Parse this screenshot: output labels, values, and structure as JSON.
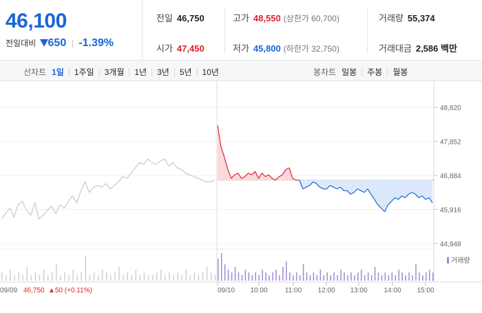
{
  "quote": {
    "price": "46,100",
    "change_label": "전일대비",
    "change": "650",
    "change_pct": "-1.39%"
  },
  "stats": {
    "prev_close": {
      "label": "전일",
      "value": "46,750"
    },
    "open": {
      "label": "시가",
      "value": "47,450"
    },
    "high": {
      "label": "고가",
      "value": "48,550",
      "sub": "(상한가 60,700)"
    },
    "low": {
      "label": "저가",
      "value": "45,800",
      "sub": "(하한가 32,750)"
    },
    "volume": {
      "label": "거래량",
      "value": "55,374"
    },
    "amount": {
      "label": "거래대금",
      "value": "2,586 백만"
    }
  },
  "toolbar": {
    "line_label": "선차트",
    "ranges": [
      "1일",
      "1주일",
      "3개월",
      "1년",
      "3년",
      "5년",
      "10년"
    ],
    "active_range": "1일",
    "candle_label": "봉차트",
    "candles": [
      "일봉",
      "주봉",
      "월봉"
    ]
  },
  "colors": {
    "up": "#e0202b",
    "down": "#1a64d6",
    "prev_day_line": "#c8c8c8",
    "volume_today": "#a08ad0",
    "volume_prev": "#cfcfcf",
    "fill_up": "#f9d9dc",
    "fill_down": "#dbe8fa"
  },
  "chart_data": {
    "type": "line",
    "y_ticks": [
      "48,820",
      "47,852",
      "46,884",
      "45,916",
      "44,948"
    ],
    "ylim": [
      44948,
      48820
    ],
    "baseline": 46750,
    "x_ticks": [
      "09/10",
      "10:00",
      "11:00",
      "12:00",
      "13:00",
      "14:00",
      "15:00"
    ],
    "prev_day": {
      "date": "09/09",
      "close_text": "46,750",
      "change_text": "▲50 (+0.11%)",
      "values": [
        45650,
        45800,
        45950,
        45700,
        46050,
        46150,
        45900,
        45750,
        46100,
        45650,
        45750,
        45900,
        46000,
        45800,
        46050,
        45950,
        46150,
        46300,
        46100,
        46450,
        46700,
        46400,
        46550,
        46600,
        46550,
        46650,
        46500,
        46600,
        46700,
        46850,
        46800,
        46950,
        47100,
        47250,
        47200,
        47350,
        47250,
        47200,
        47300,
        47350,
        47150,
        47250,
        47100,
        47050,
        46950,
        46900,
        46850,
        46800,
        46750,
        46700,
        46700,
        46750
      ]
    },
    "today": {
      "values": [
        48300,
        47700,
        47400,
        47050,
        46800,
        46900,
        46950,
        46800,
        46850,
        46950,
        46900,
        47000,
        46800,
        46950,
        46850,
        46900,
        46800,
        46750,
        46850,
        46900,
        47050,
        47100,
        46800,
        46750,
        46750,
        46500,
        46550,
        46600,
        46700,
        46650,
        46550,
        46500,
        46500,
        46600,
        46550,
        46500,
        46550,
        46450,
        46450,
        46350,
        46400,
        46500,
        46450,
        46400,
        46500,
        46350,
        46200,
        46050,
        45950,
        45850,
        46050,
        46150,
        46250,
        46200,
        46300,
        46250,
        46350,
        46400,
        46350,
        46250,
        46300,
        46200,
        46250,
        46100
      ]
    },
    "volume_label": "거래량",
    "volume_prev": [
      3,
      2,
      4,
      2,
      3,
      2,
      5,
      2,
      3,
      2,
      4,
      2,
      3,
      6,
      2,
      3,
      2,
      4,
      2,
      3,
      9,
      2,
      3,
      2,
      4,
      3,
      2,
      3,
      5,
      2,
      3,
      2,
      4,
      2,
      3,
      2,
      2,
      3,
      4,
      2,
      3,
      2,
      3,
      2,
      4,
      2,
      3,
      2,
      3,
      5,
      3,
      2
    ],
    "volume_today": [
      8,
      10,
      6,
      4,
      3,
      5,
      3,
      2,
      4,
      3,
      2,
      3,
      2,
      4,
      3,
      2,
      3,
      4,
      2,
      5,
      7,
      3,
      2,
      3,
      2,
      6,
      3,
      2,
      3,
      2,
      4,
      2,
      3,
      2,
      3,
      2,
      4,
      3,
      2,
      3,
      2,
      3,
      4,
      2,
      3,
      2,
      5,
      3,
      2,
      3,
      2,
      3,
      2,
      4,
      3,
      2,
      3,
      2,
      6,
      3,
      2,
      3,
      4,
      3
    ]
  }
}
